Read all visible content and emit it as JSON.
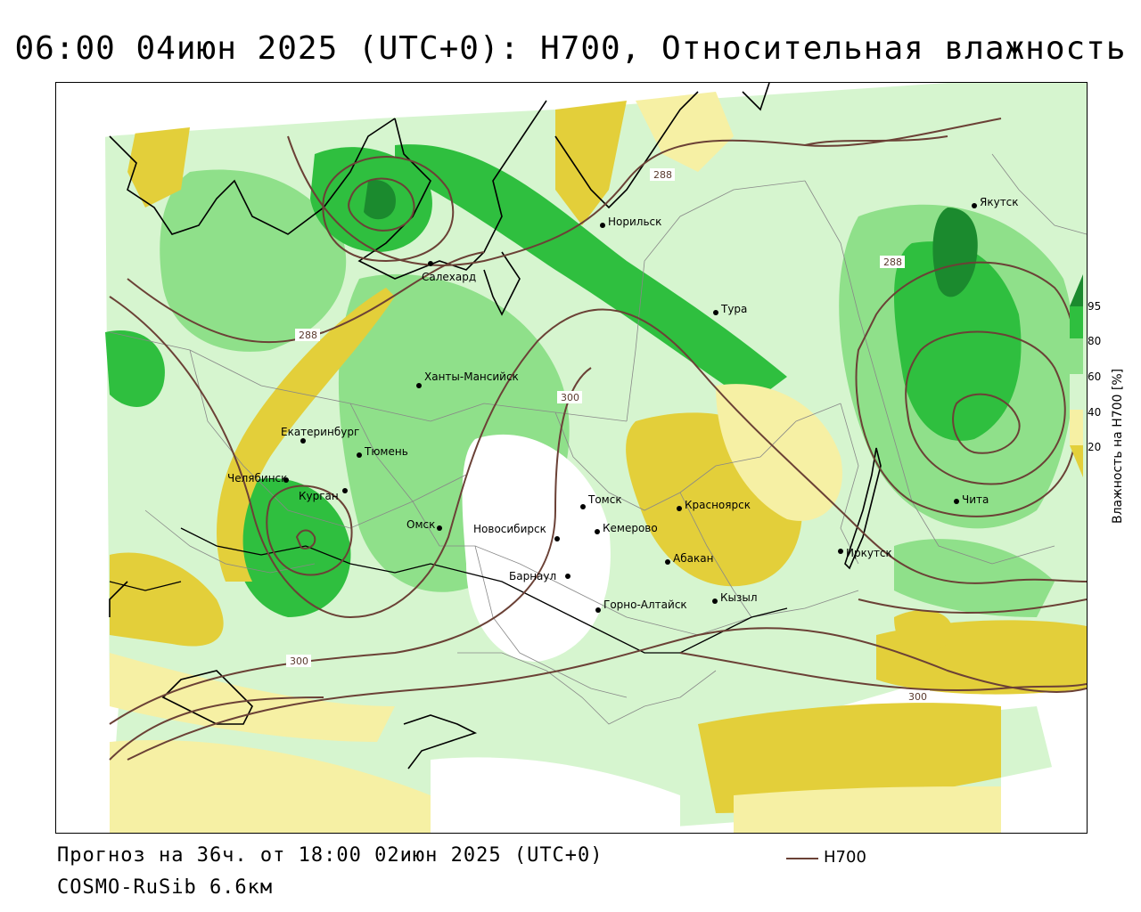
{
  "title": "06:00 04июн 2025 (UTC+0): H700, Относительная влажность",
  "footer": {
    "forecast": "Прогноз на 36ч. от 18:00 02июн 2025 (UTC+0)",
    "model": "COSMO-RuSib 6.6км",
    "legend_label": "H700"
  },
  "colorbar": {
    "title": "Влажность на H700 [%]",
    "ticks": [
      "95",
      "80",
      "60",
      "40",
      "20"
    ],
    "colors": {
      "above_95": "#1b8a2e",
      "80_95": "#2fbf3f",
      "60_80": "#8fe08a",
      "40_60": "#d6f5cf",
      "20_40": "#ffffff",
      "below_20_light": "#f6f0a4",
      "below_20": "#e3cf3a"
    }
  },
  "contours": {
    "color": "#6b4136",
    "labels": [
      "288",
      "288",
      "288",
      "300",
      "300",
      "300"
    ]
  },
  "cities": [
    {
      "name": "Норильск"
    },
    {
      "name": "Салехард"
    },
    {
      "name": "Якутск"
    },
    {
      "name": "Тура"
    },
    {
      "name": "Ханты-Мансийск"
    },
    {
      "name": "Екатеринбург"
    },
    {
      "name": "Тюмень"
    },
    {
      "name": "Челябинск"
    },
    {
      "name": "Курган"
    },
    {
      "name": "Омск"
    },
    {
      "name": "Новосибирск"
    },
    {
      "name": "Томск"
    },
    {
      "name": "Кемерово"
    },
    {
      "name": "Красноярск"
    },
    {
      "name": "Абакан"
    },
    {
      "name": "Барнаул"
    },
    {
      "name": "Горно-Алтайск"
    },
    {
      "name": "Кызыл"
    },
    {
      "name": "Иркутск"
    },
    {
      "name": "Чита"
    }
  ]
}
